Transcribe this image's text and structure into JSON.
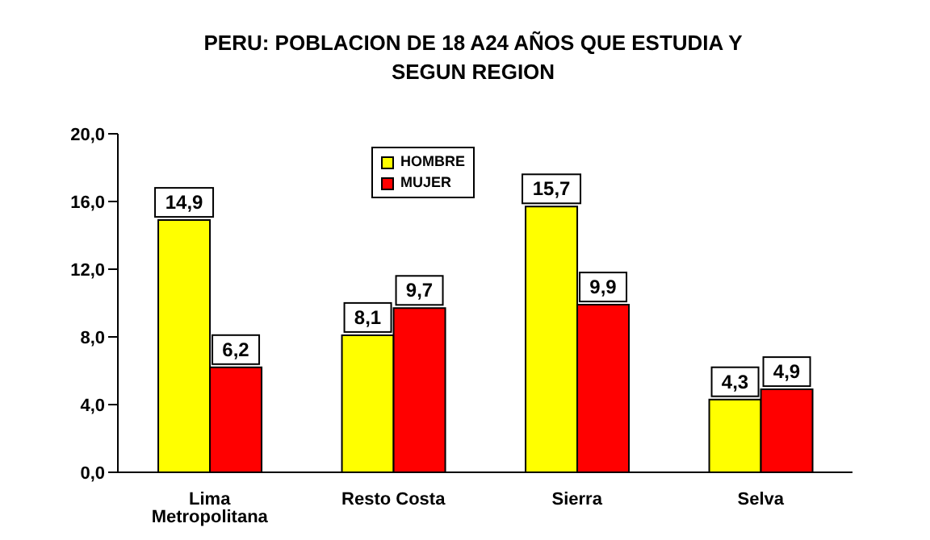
{
  "chart_data": {
    "type": "bar",
    "title": "PERU: POBLACION DE 18 A24 AÑOS QUE ESTUDIA Y SEGUN REGION",
    "categories": [
      "Lima Metropolitana",
      "Resto Costa",
      "Sierra",
      "Selva"
    ],
    "series": [
      {
        "name": "HOMBRE",
        "color": "#ffff00",
        "values": [
          14.9,
          8.1,
          15.7,
          4.3
        ],
        "value_labels": [
          "14,9",
          "8,1",
          "15,7",
          "4,3"
        ]
      },
      {
        "name": "MUJER",
        "color": "#ff0000",
        "values": [
          6.2,
          9.7,
          9.9,
          4.9
        ],
        "value_labels": [
          "6,2",
          "9,7",
          "9,9",
          "4,9"
        ]
      }
    ],
    "ylim": [
      0,
      20
    ],
    "yticks": [
      {
        "value": 0,
        "label": "0,0"
      },
      {
        "value": 4,
        "label": "4,0"
      },
      {
        "value": 8,
        "label": "8,0"
      },
      {
        "value": 12,
        "label": "12,0"
      },
      {
        "value": 16,
        "label": "16,0"
      },
      {
        "value": 20,
        "label": "20,0"
      }
    ],
    "grid": false,
    "legend": "top"
  }
}
